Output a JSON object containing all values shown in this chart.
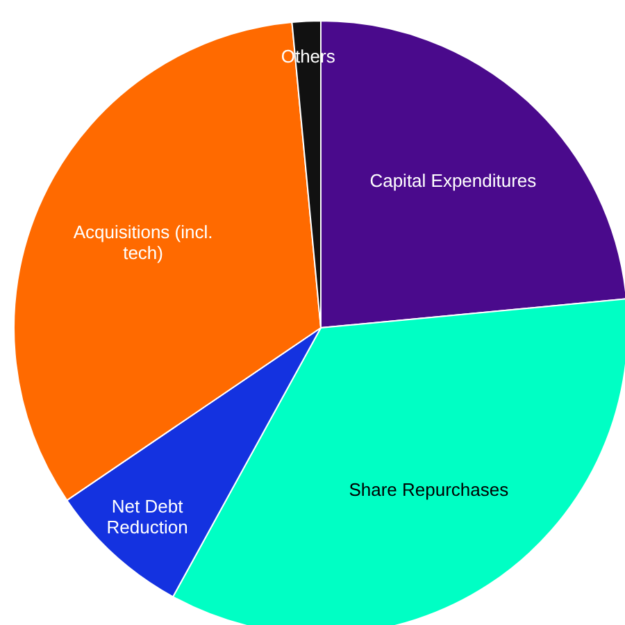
{
  "chart_data": {
    "type": "pie",
    "categories": [
      "Capital Expenditures",
      "Share Repurchases",
      "Net Debt Reduction",
      "Acquisitions (incl. tech)",
      "Others"
    ],
    "values": [
      23.5,
      34.5,
      7.5,
      33,
      1.5
    ],
    "colors": [
      "#4a0a8c",
      "#00ffc4",
      "#1432e0",
      "#ff6a00",
      "#111111"
    ]
  }
}
